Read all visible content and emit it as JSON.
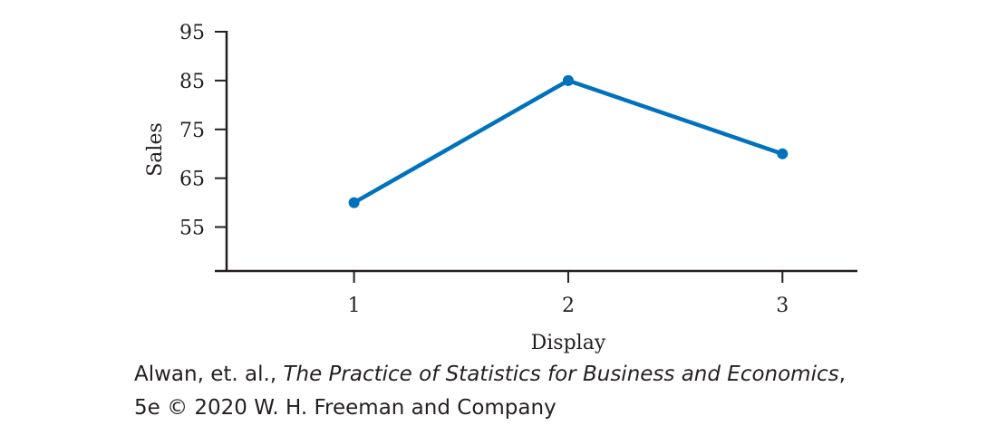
{
  "chart_data": {
    "type": "line",
    "x": [
      1,
      2,
      3
    ],
    "series": [
      {
        "values": [
          60,
          85,
          70
        ]
      }
    ],
    "xlabel": "Display",
    "ylabel": "Sales",
    "xticks": [
      "1",
      "2",
      "3"
    ],
    "yticks": [
      "55",
      "65",
      "75",
      "85",
      "95"
    ],
    "xlim": [
      0.35,
      3.35
    ],
    "ylim": [
      46,
      95
    ],
    "grid": false,
    "line_color": "#0072bc",
    "axis_color": "#231f20"
  },
  "credit": {
    "author": "Alwan, et. al., ",
    "book_title": "The Practice of Statistics for Business and Economics",
    "comma": ",",
    "line2": "5e © 2020 W. H. Freeman and Company"
  }
}
